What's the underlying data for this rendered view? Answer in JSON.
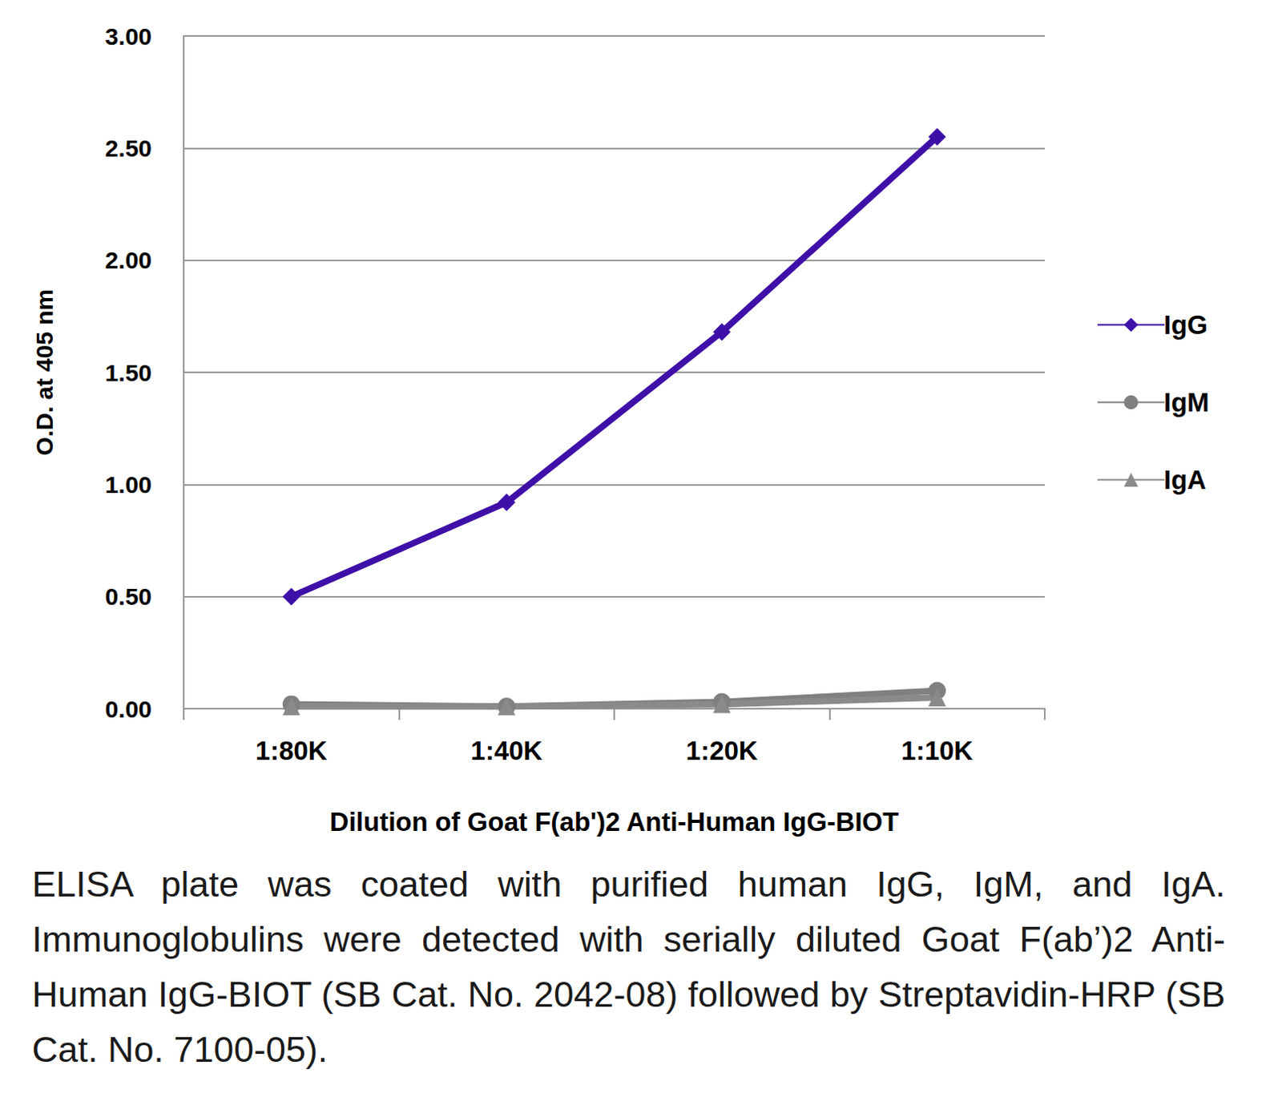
{
  "chart_data": {
    "type": "line",
    "x_label": "Dilution of Goat F(ab')2 Anti-Human IgG-BIOT",
    "y_label": "O.D. at 405 nm",
    "categories": [
      "1:80K",
      "1:40K",
      "1:20K",
      "1:10K"
    ],
    "series": [
      {
        "name": "IgG",
        "color": "#3f10a8",
        "marker": "diamond",
        "values": [
          0.5,
          0.92,
          1.68,
          2.55
        ]
      },
      {
        "name": "IgM",
        "color": "#808080",
        "marker": "circle",
        "values": [
          0.02,
          0.01,
          0.03,
          0.08
        ]
      },
      {
        "name": "IgA",
        "color": "#8a8a8a",
        "marker": "triangle",
        "values": [
          0.01,
          0.01,
          0.02,
          0.05
        ]
      }
    ],
    "ylim": [
      0,
      3
    ],
    "yticks": [
      {
        "value": 0,
        "label": "0.00"
      },
      {
        "value": 0.5,
        "label": "0.50"
      },
      {
        "value": 1,
        "label": "1.00"
      },
      {
        "value": 1.5,
        "label": "1.50"
      },
      {
        "value": 2,
        "label": "2.00"
      },
      {
        "value": 2.5,
        "label": "2.50"
      },
      {
        "value": 3,
        "label": "3.00"
      }
    ],
    "grid": true,
    "legend": "right",
    "caption": "ELISA plate was coated with purified human IgG, IgM, and IgA. Immunoglobulins were detected with serially diluted Goat F(ab’)2 Anti-Human IgG-BIOT (SB Cat. No. 2042-08) followed by Streptavidin-HRP (SB Cat. No. 7100-05)."
  }
}
